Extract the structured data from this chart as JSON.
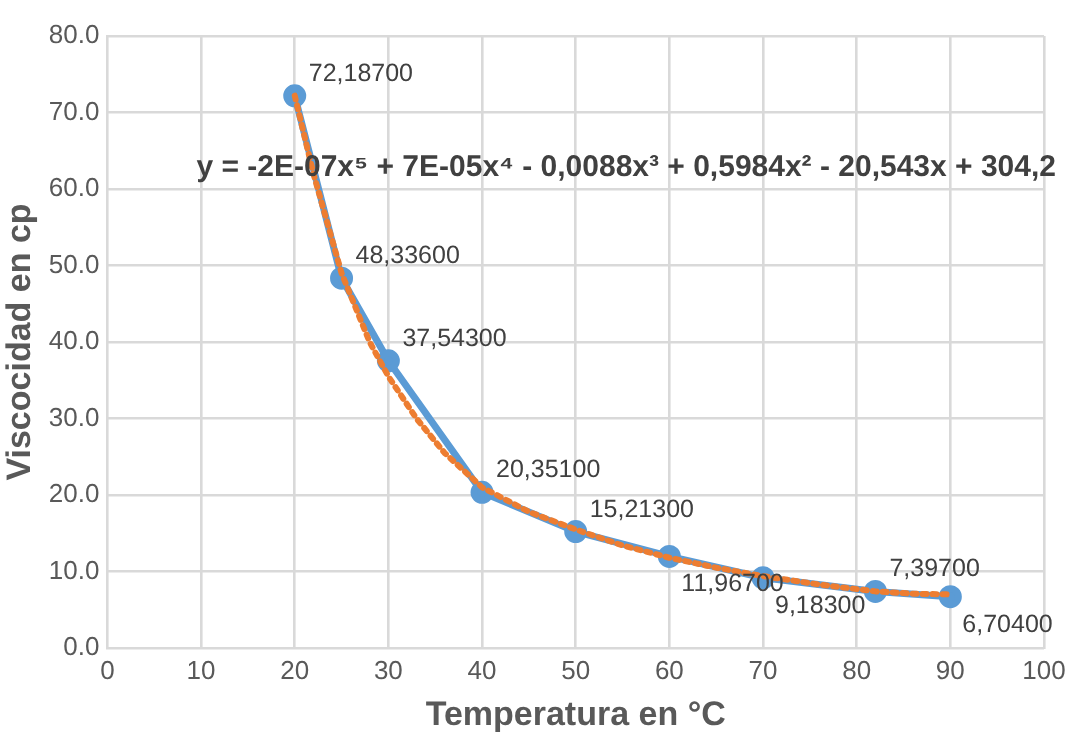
{
  "chart_data": {
    "type": "line",
    "xlabel": "Temperatura en °C",
    "ylabel": "Viscocidad en cp",
    "xlim": [
      0,
      100
    ],
    "xticks": [
      0,
      10,
      20,
      30,
      40,
      50,
      60,
      70,
      80,
      90,
      100
    ],
    "ylim": [
      0,
      80
    ],
    "yticks": [
      {
        "value": 0,
        "label": "0.0"
      },
      {
        "value": 10,
        "label": "10.0"
      },
      {
        "value": 20,
        "label": "20.0"
      },
      {
        "value": 30,
        "label": "30.0"
      },
      {
        "value": 40,
        "label": "40.0"
      },
      {
        "value": 50,
        "label": "50.0"
      },
      {
        "value": 60,
        "label": "60.0"
      },
      {
        "value": 70,
        "label": "70.0"
      },
      {
        "value": 80,
        "label": "80.0"
      }
    ],
    "grid": true,
    "annotations": [
      "y = -2E-07x⁵ + 7E-05x⁴ - 0,0088x³ + 0,5984x² - 20,543x + 304,2"
    ],
    "series": [
      {
        "type": "line",
        "color": "#5b9bd5",
        "marker": "circle",
        "line_style": "solid",
        "x": [
          20,
          25,
          30,
          40,
          50,
          60,
          70,
          82,
          90
        ],
        "values": [
          72.187,
          48.336,
          37.543,
          20.351,
          15.213,
          11.967,
          9.183,
          7.397,
          6.704
        ],
        "value_labels": [
          "72,18700",
          "48,33600",
          "37,54300",
          "20,35100",
          "15,21300",
          "11,96700",
          "9,18300",
          "7,39700",
          "6,70400"
        ]
      },
      {
        "type": "line",
        "color": "#ed7d31",
        "marker": "none",
        "line_style": "dotted",
        "x": [
          20,
          22,
          25,
          28,
          30,
          33,
          36,
          40,
          45,
          50,
          55,
          60,
          65,
          70,
          76,
          82,
          86,
          90
        ],
        "values": [
          72.2,
          62,
          49,
          40,
          35.5,
          30,
          25.5,
          21,
          17.8,
          15.5,
          13.4,
          11.8,
          10.5,
          9.4,
          8.3,
          7.4,
          7.1,
          7
        ]
      }
    ]
  }
}
